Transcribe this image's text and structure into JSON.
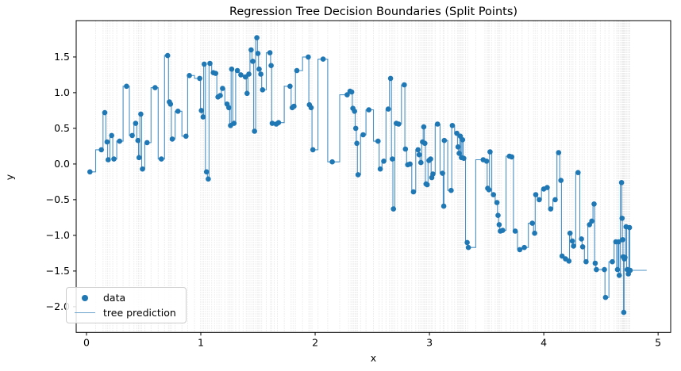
{
  "figure": {
    "title": "Regression Tree Decision Boundaries (Split Points)",
    "xlabel": "x",
    "ylabel": "y"
  },
  "chart_data": {
    "type": "scatter",
    "title": "Regression Tree Decision Boundaries (Split Points)",
    "xlabel": "x",
    "ylabel": "y",
    "xlim": [
      -0.09,
      5.11
    ],
    "ylim": [
      -2.36,
      2.01
    ],
    "xticks": [
      0,
      1,
      2,
      3,
      4,
      5
    ],
    "yticks": [
      1.5,
      1.0,
      0.5,
      0.0,
      -0.5,
      -1.0,
      -1.5,
      -2.0
    ],
    "grid": false,
    "legend": {
      "position": "lower left",
      "entries": [
        {
          "label": "data",
          "glyph": "dot"
        },
        {
          "label": "tree prediction",
          "glyph": "line"
        }
      ]
    },
    "colors": {
      "points": "#1f77b4",
      "prediction_line": "#4a90c4",
      "split_lines": "#aaaaaa",
      "axes": "#000000"
    },
    "notes": "Scatter of noisy sine-like data with a regression-tree step prediction; light vertical lines mark tree split points (midpoints between consecutive x values). Prediction line extends flat to x_end.",
    "prediction": {
      "style": "step-mid-through-points",
      "x_end": 4.9
    },
    "points": [
      [
        0.03,
        -0.11
      ],
      [
        0.13,
        0.2
      ],
      [
        0.16,
        0.72
      ],
      [
        0.18,
        0.31
      ],
      [
        0.19,
        0.06
      ],
      [
        0.22,
        0.4
      ],
      [
        0.24,
        0.07
      ],
      [
        0.29,
        0.32
      ],
      [
        0.35,
        1.09
      ],
      [
        0.4,
        0.4
      ],
      [
        0.43,
        0.57
      ],
      [
        0.45,
        0.33
      ],
      [
        0.46,
        0.09
      ],
      [
        0.475,
        0.7
      ],
      [
        0.49,
        -0.07
      ],
      [
        0.53,
        0.3
      ],
      [
        0.6,
        1.07
      ],
      [
        0.655,
        0.07
      ],
      [
        0.71,
        1.52
      ],
      [
        0.725,
        0.87
      ],
      [
        0.735,
        0.84
      ],
      [
        0.75,
        0.35
      ],
      [
        0.8,
        0.74
      ],
      [
        0.87,
        0.39
      ],
      [
        0.9,
        1.24
      ],
      [
        0.99,
        1.2
      ],
      [
        1.005,
        0.75
      ],
      [
        1.02,
        0.66
      ],
      [
        1.03,
        1.4
      ],
      [
        1.05,
        -0.11
      ],
      [
        1.065,
        -0.21
      ],
      [
        1.08,
        1.41
      ],
      [
        1.11,
        1.28
      ],
      [
        1.13,
        1.27
      ],
      [
        1.15,
        0.94
      ],
      [
        1.17,
        0.96
      ],
      [
        1.19,
        1.06
      ],
      [
        1.23,
        0.84
      ],
      [
        1.245,
        0.79
      ],
      [
        1.26,
        0.54
      ],
      [
        1.27,
        1.33
      ],
      [
        1.29,
        0.57
      ],
      [
        1.32,
        1.31
      ],
      [
        1.35,
        1.25
      ],
      [
        1.39,
        1.22
      ],
      [
        1.405,
        0.99
      ],
      [
        1.42,
        1.26
      ],
      [
        1.44,
        1.6
      ],
      [
        1.455,
        1.44
      ],
      [
        1.47,
        0.46
      ],
      [
        1.49,
        1.77
      ],
      [
        1.5,
        1.55
      ],
      [
        1.51,
        1.33
      ],
      [
        1.525,
        1.26
      ],
      [
        1.54,
        1.04
      ],
      [
        1.605,
        1.56
      ],
      [
        1.615,
        1.38
      ],
      [
        1.625,
        0.57
      ],
      [
        1.66,
        0.56
      ],
      [
        1.68,
        0.58
      ],
      [
        1.78,
        1.09
      ],
      [
        1.8,
        0.79
      ],
      [
        1.815,
        0.81
      ],
      [
        1.84,
        1.31
      ],
      [
        1.94,
        1.5
      ],
      [
        1.95,
        0.83
      ],
      [
        1.965,
        0.79
      ],
      [
        1.98,
        0.2
      ],
      [
        2.07,
        1.47
      ],
      [
        2.15,
        0.03
      ],
      [
        2.28,
        0.97
      ],
      [
        2.305,
        1.02
      ],
      [
        2.32,
        1.01
      ],
      [
        2.33,
        0.78
      ],
      [
        2.345,
        0.74
      ],
      [
        2.355,
        0.5
      ],
      [
        2.365,
        0.29
      ],
      [
        2.375,
        -0.15
      ],
      [
        2.42,
        0.41
      ],
      [
        2.47,
        0.76
      ],
      [
        2.55,
        0.32
      ],
      [
        2.57,
        -0.07
      ],
      [
        2.6,
        0.04
      ],
      [
        2.64,
        0.77
      ],
      [
        2.66,
        1.2
      ],
      [
        2.675,
        0.07
      ],
      [
        2.685,
        -0.63
      ],
      [
        2.71,
        0.57
      ],
      [
        2.73,
        0.56
      ],
      [
        2.78,
        1.11
      ],
      [
        2.79,
        0.21
      ],
      [
        2.81,
        -0.01
      ],
      [
        2.83,
        0.0
      ],
      [
        2.86,
        -0.39
      ],
      [
        2.9,
        0.2
      ],
      [
        2.91,
        0.13
      ],
      [
        2.925,
        0.02
      ],
      [
        2.94,
        0.31
      ],
      [
        2.95,
        0.52
      ],
      [
        2.96,
        0.29
      ],
      [
        2.97,
        -0.28
      ],
      [
        2.98,
        -0.29
      ],
      [
        2.995,
        0.05
      ],
      [
        3.01,
        0.07
      ],
      [
        3.02,
        -0.19
      ],
      [
        3.03,
        -0.14
      ],
      [
        3.07,
        0.56
      ],
      [
        3.115,
        -0.13
      ],
      [
        3.125,
        -0.59
      ],
      [
        3.13,
        0.33
      ],
      [
        3.19,
        -0.37
      ],
      [
        3.2,
        0.54
      ],
      [
        3.24,
        0.43
      ],
      [
        3.25,
        0.24
      ],
      [
        3.26,
        0.15
      ],
      [
        3.27,
        0.39
      ],
      [
        3.28,
        0.09
      ],
      [
        3.29,
        0.34
      ],
      [
        3.3,
        0.08
      ],
      [
        3.33,
        -1.1
      ],
      [
        3.34,
        -1.17
      ],
      [
        3.47,
        0.06
      ],
      [
        3.5,
        0.04
      ],
      [
        3.51,
        -0.34
      ],
      [
        3.52,
        -0.36
      ],
      [
        3.53,
        0.17
      ],
      [
        3.56,
        -0.43
      ],
      [
        3.59,
        -0.54
      ],
      [
        3.6,
        -0.72
      ],
      [
        3.61,
        -0.85
      ],
      [
        3.62,
        -0.94
      ],
      [
        3.64,
        -0.93
      ],
      [
        3.7,
        0.11
      ],
      [
        3.72,
        0.1
      ],
      [
        3.75,
        -0.94
      ],
      [
        3.79,
        -1.2
      ],
      [
        3.83,
        -1.17
      ],
      [
        3.9,
        -0.83
      ],
      [
        3.92,
        -0.97
      ],
      [
        3.93,
        -0.43
      ],
      [
        3.96,
        -0.5
      ],
      [
        4.0,
        -0.35
      ],
      [
        4.03,
        -0.33
      ],
      [
        4.06,
        -0.63
      ],
      [
        4.1,
        -0.5
      ],
      [
        4.13,
        0.16
      ],
      [
        4.15,
        -0.23
      ],
      [
        4.16,
        -1.29
      ],
      [
        4.19,
        -1.33
      ],
      [
        4.22,
        -1.36
      ],
      [
        4.23,
        -0.97
      ],
      [
        4.25,
        -1.08
      ],
      [
        4.26,
        -1.15
      ],
      [
        4.3,
        -0.12
      ],
      [
        4.33,
        -1.05
      ],
      [
        4.34,
        -1.16
      ],
      [
        4.37,
        -1.37
      ],
      [
        4.4,
        -0.85
      ],
      [
        4.42,
        -0.8
      ],
      [
        4.44,
        -0.56
      ],
      [
        4.45,
        -1.39
      ],
      [
        4.46,
        -1.48
      ],
      [
        4.53,
        -1.48
      ],
      [
        4.54,
        -1.87
      ],
      [
        4.6,
        -1.37
      ],
      [
        4.63,
        -1.09
      ],
      [
        4.645,
        -1.48
      ],
      [
        4.655,
        -1.09
      ],
      [
        4.66,
        -1.56
      ],
      [
        4.68,
        -0.26
      ],
      [
        4.685,
        -0.76
      ],
      [
        4.69,
        -1.06
      ],
      [
        4.695,
        -1.3
      ],
      [
        4.7,
        -2.08
      ],
      [
        4.705,
        -1.33
      ],
      [
        4.71,
        -1.31
      ],
      [
        4.72,
        -0.88
      ],
      [
        4.73,
        -1.48
      ],
      [
        4.74,
        -1.54
      ],
      [
        4.75,
        -0.89
      ],
      [
        4.755,
        -1.49
      ]
    ]
  }
}
